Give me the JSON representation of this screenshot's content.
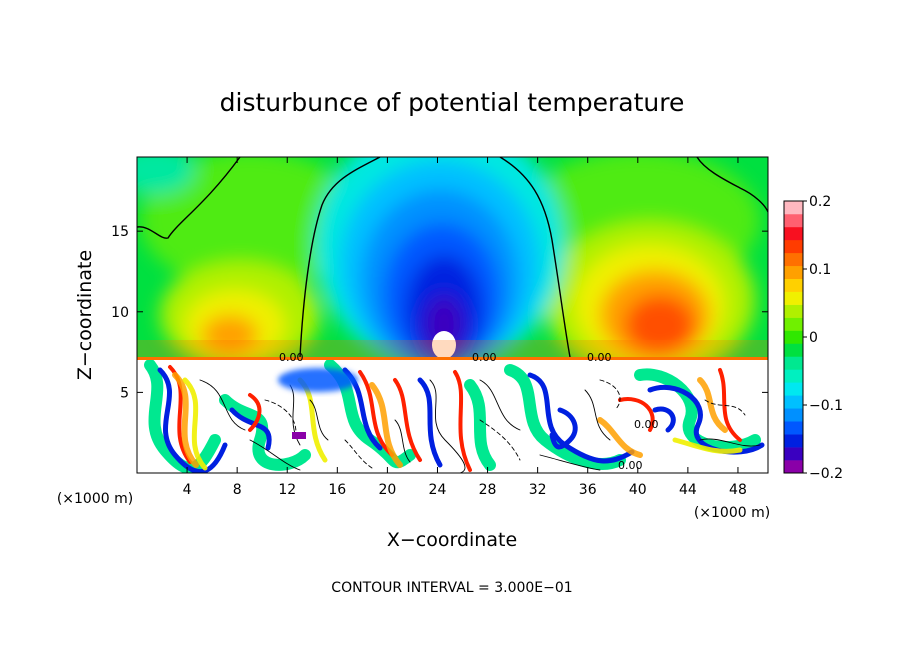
{
  "chart_data": {
    "type": "heatmap",
    "title": "disturbunce of potential temperature",
    "xlabel": "X−coordinate",
    "ylabel": "Z−coordinate",
    "x_unit": "(×1000 m)",
    "y_unit": "(×1000 m)",
    "xlim": [
      0,
      50.4
    ],
    "ylim": [
      0,
      19.6
    ],
    "x_ticks": [
      4,
      8,
      12,
      16,
      20,
      24,
      28,
      32,
      36,
      40,
      44,
      48
    ],
    "y_ticks": [
      5,
      10,
      15
    ],
    "colorbar": {
      "range": [
        -0.2,
        0.2
      ],
      "ticks": [
        "0.2",
        "0.1",
        "0",
        "−0.1",
        "−0.2"
      ],
      "colors": [
        "#8a00a8",
        "#3a00c0",
        "#0020e0",
        "#0058ff",
        "#0090ff",
        "#00c0ff",
        "#00e8f0",
        "#00f0c0",
        "#00e890",
        "#00e040",
        "#30e800",
        "#70f000",
        "#b0f000",
        "#f0f000",
        "#ffd000",
        "#ffa000",
        "#ff7000",
        "#ff3c00",
        "#f81020",
        "#ff6070",
        "#ffb8c0"
      ]
    },
    "contour_labels": [
      "0.00",
      "0.00",
      "0.00",
      "0.00",
      "0.00"
    ],
    "note": "CONTOUR INTERVAL = 3.000E−01"
  },
  "colors": {
    "background": "#ffffff",
    "axes": "#000000"
  }
}
